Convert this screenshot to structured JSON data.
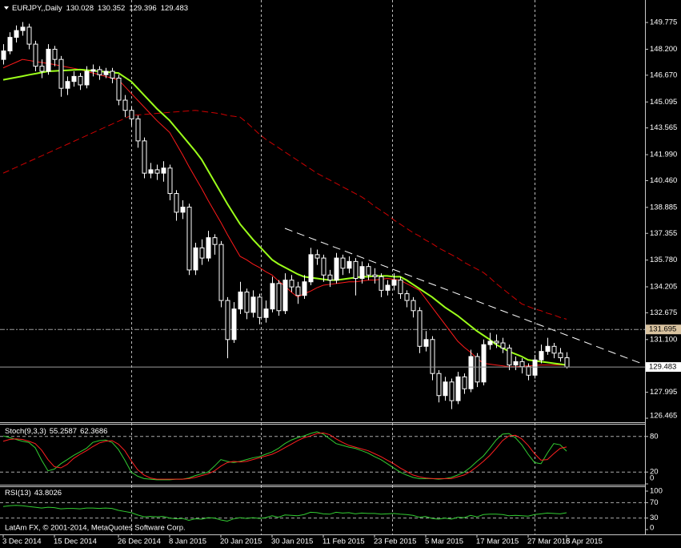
{
  "chart_data": [
    {
      "type": "candlestick",
      "title": "EURJPY,,Daily",
      "categories": [
        "3 Dec 2014",
        null,
        null,
        null,
        null,
        null,
        null,
        null,
        "15 Dec 2014",
        null,
        null,
        null,
        null,
        null,
        null,
        null,
        null,
        null,
        "26 Dec 2014",
        null,
        null,
        null,
        null,
        null,
        null,
        null,
        "8 Jan 2015",
        null,
        null,
        null,
        null,
        null,
        null,
        null,
        "20 Jan 2015",
        null,
        null,
        null,
        null,
        null,
        null,
        null,
        "30 Jan 2015",
        null,
        null,
        null,
        null,
        null,
        null,
        null,
        "11 Feb 2015",
        null,
        null,
        null,
        null,
        null,
        null,
        null,
        "23 Feb 2015",
        null,
        null,
        null,
        null,
        null,
        null,
        null,
        "5 Mar 2015",
        null,
        null,
        null,
        null,
        null,
        null,
        null,
        "17 Mar 2015",
        null,
        null,
        null,
        null,
        null,
        null,
        null,
        "27 Mar 2015",
        null,
        null,
        null,
        null,
        null,
        "8 Apr 2015"
      ],
      "open": [
        147.6,
        148.1,
        148.9,
        149.3,
        149.5,
        148.5,
        147.2,
        146.9,
        148.2,
        147.6,
        145.9,
        146.3,
        146.6,
        146.1,
        146.9,
        147.0,
        146.7,
        146.9,
        146.5,
        145.2,
        144.6,
        144.1,
        142.8,
        140.9,
        141.1,
        140.9,
        141.2,
        139.7,
        138.6,
        138.9,
        135.2,
        136.5,
        135.9,
        137.1,
        136.7,
        133.4,
        131.1,
        132.9,
        133.9,
        132.7,
        133.6,
        132.4,
        132.9,
        134.4,
        132.8,
        134.6,
        134.2,
        133.7,
        134.5,
        136.1,
        135.9,
        134.9,
        134.6,
        135.9,
        135.3,
        135.7,
        134.7,
        135.4,
        134.9,
        134.8,
        134.0,
        134.3,
        134.6,
        133.8,
        133.4,
        132.8,
        130.7,
        131.1,
        129.1,
        127.8,
        128.6,
        127.5,
        128.9,
        128.2,
        130.1,
        128.6,
        130.8,
        131.0,
        130.9,
        130.6,
        129.6,
        129.8,
        129.5,
        129.0,
        129.9,
        130.4,
        130.7,
        130.3,
        130.028
      ],
      "high": [
        148.5,
        149.2,
        149.6,
        149.8,
        149.7,
        148.7,
        147.6,
        148.5,
        148.4,
        147.8,
        146.6,
        146.9,
        146.8,
        147.2,
        147.3,
        147.2,
        147.1,
        147.1,
        146.7,
        145.5,
        144.8,
        144.3,
        143.0,
        141.5,
        141.4,
        141.6,
        141.4,
        139.9,
        139.3,
        139.1,
        136.8,
        137.0,
        137.5,
        137.3,
        136.9,
        133.6,
        133.3,
        134.5,
        134.1,
        134.0,
        133.8,
        133.4,
        134.8,
        134.6,
        135.0,
        134.9,
        134.5,
        134.9,
        136.5,
        136.4,
        136.1,
        135.2,
        136.2,
        136.1,
        136.0,
        135.9,
        135.7,
        135.6,
        135.3,
        135.0,
        134.6,
        135.0,
        134.8,
        134.0,
        133.6,
        133.0,
        131.6,
        131.3,
        129.3,
        128.9,
        128.8,
        129.2,
        129.1,
        130.5,
        130.3,
        131.1,
        131.5,
        131.4,
        131.2,
        130.8,
        130.1,
        130.0,
        129.7,
        130.2,
        130.8,
        131.2,
        130.9,
        130.6,
        130.352
      ],
      "low": [
        147.3,
        147.9,
        148.6,
        149.0,
        148.2,
        146.9,
        146.5,
        146.7,
        147.2,
        145.4,
        145.5,
        146.0,
        145.8,
        145.9,
        146.6,
        146.4,
        146.5,
        146.2,
        144.9,
        144.2,
        143.7,
        142.4,
        140.6,
        140.6,
        140.5,
        140.4,
        139.3,
        138.1,
        138.2,
        134.9,
        134.9,
        135.5,
        135.7,
        136.1,
        133.0,
        130.0,
        130.9,
        132.6,
        132.3,
        132.4,
        132.0,
        132.1,
        132.7,
        132.5,
        132.6,
        133.9,
        133.2,
        133.5,
        134.3,
        135.5,
        134.5,
        134.2,
        134.4,
        134.9,
        135.0,
        133.7,
        134.4,
        134.6,
        134.4,
        133.6,
        133.7,
        134.0,
        133.5,
        133.0,
        132.4,
        130.3,
        130.4,
        128.7,
        127.4,
        127.5,
        127.0,
        127.3,
        127.9,
        128.0,
        128.3,
        128.4,
        130.5,
        130.6,
        130.3,
        129.3,
        129.3,
        129.1,
        128.7,
        128.8,
        129.7,
        130.2,
        130.0,
        129.8,
        129.396
      ],
      "close": [
        148.1,
        148.9,
        149.3,
        149.5,
        148.5,
        147.2,
        146.9,
        148.2,
        147.6,
        145.9,
        146.3,
        146.6,
        146.1,
        146.9,
        147.0,
        146.7,
        146.9,
        146.5,
        145.2,
        144.6,
        144.1,
        142.8,
        140.9,
        141.1,
        140.9,
        141.2,
        139.7,
        138.6,
        138.9,
        135.2,
        136.5,
        135.9,
        137.1,
        136.7,
        133.4,
        131.1,
        132.9,
        133.9,
        132.7,
        133.6,
        132.4,
        132.9,
        134.4,
        132.8,
        134.6,
        134.2,
        133.7,
        134.5,
        136.1,
        135.9,
        134.9,
        134.6,
        135.9,
        135.3,
        135.7,
        134.7,
        135.4,
        134.9,
        134.8,
        134.0,
        134.3,
        134.6,
        133.8,
        133.4,
        132.8,
        130.7,
        131.1,
        129.1,
        127.8,
        128.6,
        127.5,
        128.9,
        128.2,
        130.1,
        128.6,
        130.8,
        131.0,
        130.9,
        130.6,
        129.6,
        129.8,
        129.5,
        129.0,
        129.9,
        130.4,
        130.7,
        130.3,
        130.028,
        129.483
      ],
      "overlays": [
        {
          "color": "#cc0000",
          "style": "dashed",
          "values": [
            140.9,
            141.07,
            141.24,
            141.41,
            141.58,
            141.75,
            141.92,
            142.09,
            142.26,
            142.43,
            142.6,
            142.77,
            142.94,
            143.11,
            143.28,
            143.45,
            143.62,
            143.79,
            143.96,
            144.13,
            144.3,
            144.33,
            144.36,
            144.39,
            144.42,
            144.45,
            144.48,
            144.51,
            144.54,
            144.57,
            144.6,
            144.55,
            144.5,
            144.45,
            144.4,
            144.3,
            144.25,
            144.2,
            143.9,
            143.55,
            143.2,
            142.9,
            142.65,
            142.4,
            142.15,
            141.9,
            141.65,
            141.4,
            141.15,
            140.9,
            140.7,
            140.5,
            140.3,
            140.1,
            139.9,
            139.7,
            139.5,
            139.25,
            138.95,
            138.7,
            138.45,
            138.15,
            137.9,
            137.65,
            137.4,
            137.2,
            136.95,
            136.75,
            136.5,
            136.3,
            136.1,
            135.9,
            135.65,
            135.45,
            135.25,
            135.05,
            134.75,
            134.4,
            134.1,
            133.8,
            133.5,
            133.2,
            133.05,
            132.9,
            132.8,
            132.65,
            132.55,
            132.4,
            132.3
          ]
        },
        {
          "color": "#ff1a1a",
          "style": "solid",
          "values": [
            147.1,
            147.27,
            147.43,
            147.6,
            147.54,
            147.48,
            147.42,
            147.36,
            147.3,
            147.22,
            147.15,
            147.08,
            147.0,
            146.9,
            146.8,
            146.7,
            146.6,
            146.5,
            146.4,
            146.0,
            145.6,
            145.2,
            144.8,
            144.4,
            144.0,
            143.65,
            143.3,
            142.65,
            142.0,
            141.3,
            140.65,
            140.0,
            139.3,
            138.65,
            138.0,
            137.3,
            136.65,
            136.0,
            135.8,
            135.55,
            135.35,
            135.1,
            134.9,
            134.55,
            134.25,
            133.9,
            133.6,
            133.8,
            133.95,
            134.15,
            134.3,
            134.35,
            134.4,
            134.45,
            134.5,
            134.5,
            134.55,
            134.6,
            134.6,
            134.65,
            134.7,
            134.65,
            134.6,
            134.4,
            134.2,
            134.0,
            133.5,
            133.0,
            132.5,
            132.0,
            131.5,
            131.0,
            130.65,
            130.35,
            130.0,
            129.7,
            129.65,
            129.6,
            129.55,
            129.5,
            129.5,
            129.52,
            129.55,
            129.57,
            129.6,
            129.6,
            129.6,
            129.6,
            129.6
          ]
        },
        {
          "color": "#9cff1a",
          "style": "thick",
          "values": [
            146.4,
            146.47,
            146.54,
            146.61,
            146.69,
            146.76,
            146.83,
            146.9,
            146.92,
            146.94,
            146.96,
            146.98,
            147.0,
            146.97,
            146.93,
            146.9,
            146.87,
            146.83,
            146.8,
            146.55,
            146.3,
            145.9,
            145.5,
            145.1,
            144.7,
            144.35,
            144.0,
            143.55,
            143.1,
            142.65,
            142.2,
            141.7,
            141.05,
            140.4,
            139.75,
            139.1,
            138.5,
            137.9,
            137.45,
            137.0,
            136.6,
            136.2,
            135.8,
            135.55,
            135.35,
            135.15,
            134.95,
            134.8,
            134.75,
            134.7,
            134.65,
            134.6,
            134.6,
            134.65,
            134.7,
            134.75,
            134.8,
            134.8,
            134.85,
            134.85,
            134.85,
            134.8,
            134.8,
            134.6,
            134.35,
            134.1,
            133.85,
            133.6,
            133.3,
            133.0,
            132.75,
            132.5,
            132.2,
            131.9,
            131.6,
            131.35,
            131.1,
            130.8,
            130.6,
            130.4,
            130.25,
            130.1,
            129.9,
            129.85,
            129.8,
            129.75,
            129.7,
            129.65,
            129.6
          ]
        }
      ],
      "alert_level": 131.695,
      "ylim": [
        126.23,
        151.1
      ],
      "yticks": [
        149.775,
        {
          "value": 148.2,
          "label": "148.200"
        },
        {
          "value": 146.67,
          "label": "146.670"
        },
        145.095,
        143.565,
        {
          "value": 141.99,
          "label": "141.990"
        },
        {
          "value": 140.46,
          "label": "140.460"
        },
        138.885,
        137.355,
        {
          "value": 135.78,
          "label": "135.780"
        },
        134.205,
        132.675,
        {
          "value": 131.1,
          "label": "131.100"
        },
        127.995,
        126.465
      ]
    },
    {
      "type": "line",
      "title": "Stoch(9,3,3)",
      "series": [
        {
          "color": "#32cd32",
          "values": [
            81,
            78,
            75,
            72,
            70,
            61,
            40,
            22,
            25,
            34,
            41,
            48,
            54,
            60,
            70,
            73,
            74,
            70,
            58,
            40,
            20,
            13,
            9,
            8,
            7,
            7,
            7,
            8,
            8,
            10,
            14,
            17,
            20,
            30,
            41,
            38,
            36,
            38,
            41,
            44,
            46,
            50,
            54,
            60,
            68,
            74,
            78,
            81,
            85,
            88,
            84,
            76,
            68,
            65,
            62,
            60,
            56,
            52,
            46,
            41,
            34,
            27,
            20,
            15,
            11,
            9,
            9,
            9,
            8,
            9,
            11,
            15,
            20,
            28,
            38,
            47,
            60,
            74,
            84,
            85,
            78,
            66,
            50,
            36,
            34,
            52,
            68,
            66,
            55.2587
          ]
        },
        {
          "color": "#ff2020",
          "values": [
            72,
            75,
            76,
            75,
            72,
            68,
            57,
            41,
            29,
            27,
            33,
            43,
            50,
            56,
            63,
            69,
            72,
            73,
            67,
            56,
            39,
            24,
            15,
            10,
            8,
            8,
            8,
            8,
            8,
            9,
            11,
            14,
            17,
            22,
            30,
            36,
            38,
            37,
            38,
            41,
            44,
            47,
            50,
            55,
            61,
            67,
            73,
            78,
            81,
            85,
            86,
            83,
            76,
            70,
            65,
            62,
            59,
            56,
            51,
            46,
            40,
            34,
            27,
            21,
            15,
            12,
            10,
            9,
            9,
            9,
            9,
            12,
            15,
            21,
            29,
            38,
            48,
            60,
            73,
            81,
            82,
            76,
            65,
            51,
            40,
            41,
            51,
            60,
            62.3686
          ]
        }
      ],
      "ylim": [
        0,
        100
      ],
      "yticks": [
        0,
        20,
        80
      ]
    },
    {
      "type": "line",
      "title": "RSI(13)",
      "series": [
        {
          "color": "#32cd32",
          "values": [
            60,
            62,
            63,
            62,
            60,
            58,
            56,
            58,
            57,
            54,
            55,
            55,
            54,
            56,
            56,
            55,
            56,
            55,
            50,
            47,
            44,
            38,
            33,
            34,
            33,
            34,
            30,
            28,
            29,
            24,
            28,
            27,
            31,
            30,
            25,
            22,
            28,
            31,
            29,
            31,
            29,
            31,
            36,
            32,
            38,
            37,
            36,
            39,
            45,
            44,
            41,
            40,
            45,
            43,
            44,
            41,
            43,
            42,
            42,
            40,
            41,
            42,
            40,
            39,
            37,
            32,
            34,
            29,
            27,
            30,
            27,
            32,
            31,
            37,
            33,
            39,
            40,
            40,
            39,
            36,
            37,
            36,
            35,
            39,
            41,
            43,
            42,
            41,
            43.8026
          ]
        }
      ],
      "ylim": [
        0,
        100
      ],
      "yticks": [
        0,
        30,
        70,
        100
      ],
      "annotation": "LatAm FX, © 2001-2014, MetaQuotes Software Corp."
    }
  ]
}
